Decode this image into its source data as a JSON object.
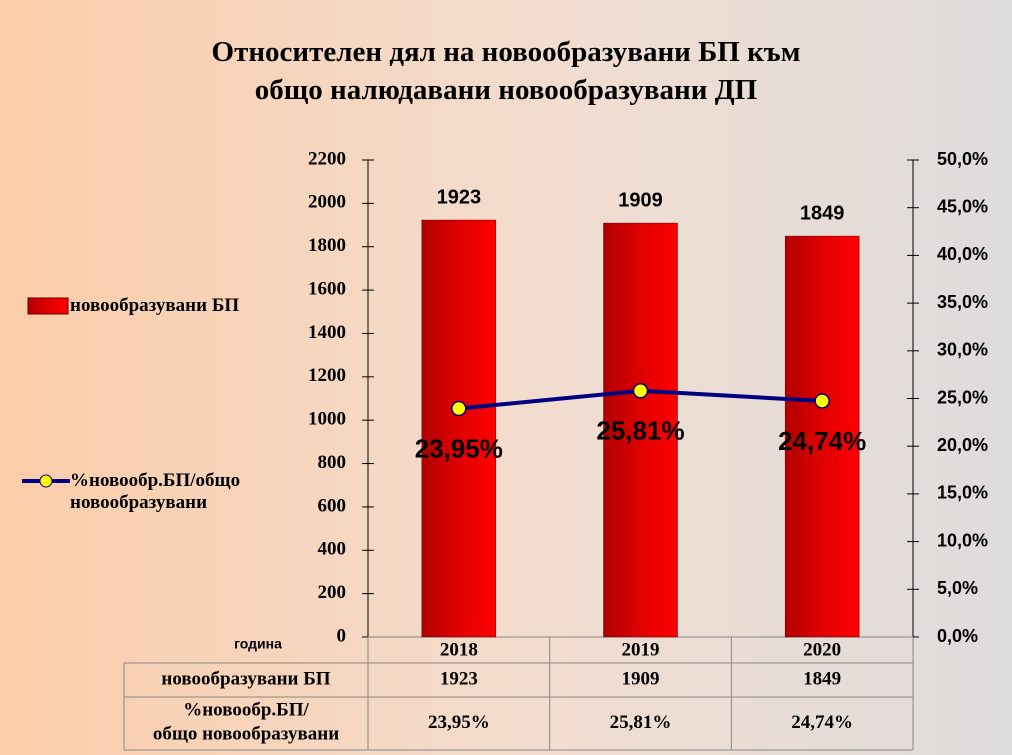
{
  "chart_data": {
    "type": "bar",
    "title": [
      "Относителен дял на новообразувани  БП към",
      "общо налюдавани новообразувани ДП"
    ],
    "x_label": "година",
    "categories": [
      "2018",
      "2019",
      "2020"
    ],
    "series": [
      {
        "name": "новообразувани БП",
        "type": "bar",
        "color": "#ff0000",
        "values": [
          1923,
          1909,
          1849
        ]
      },
      {
        "name": "%новообр.БП/общо новообразувани",
        "type": "line",
        "axis": "y2",
        "color": "#000080",
        "marker_color": "#ffff00",
        "values": [
          23.95,
          25.81,
          24.74
        ],
        "value_labels": [
          "23,95%",
          "25,81%",
          "24,74%"
        ]
      }
    ],
    "ylim": [
      0,
      2200
    ],
    "yticks": [
      0,
      200,
      400,
      600,
      800,
      1000,
      1200,
      1400,
      1600,
      1800,
      2000,
      2200
    ],
    "y2lim": [
      0,
      50
    ],
    "y2ticks": [
      {
        "value": 0,
        "label": "0,0%"
      },
      {
        "value": 5,
        "label": "5,0%"
      },
      {
        "value": 10,
        "label": "10,0%"
      },
      {
        "value": 15,
        "label": "15,0%"
      },
      {
        "value": 20,
        "label": "20,0%"
      },
      {
        "value": 25,
        "label": "25,0%"
      },
      {
        "value": 30,
        "label": "30,0%"
      },
      {
        "value": 35,
        "label": "35,0%"
      },
      {
        "value": 40,
        "label": "40,0%"
      },
      {
        "value": 45,
        "label": "45,0%"
      },
      {
        "value": 50,
        "label": "50,0%"
      }
    ],
    "legend": "left",
    "data_table": true
  }
}
